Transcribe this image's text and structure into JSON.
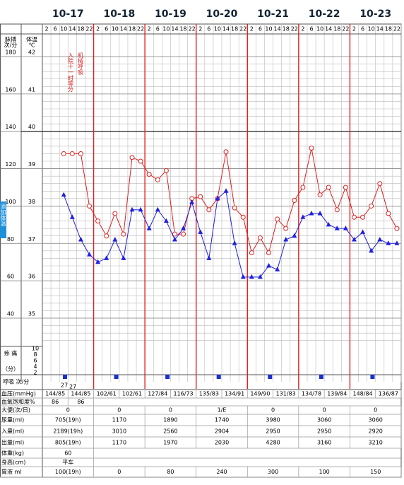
{
  "chart_data": {
    "type": "line",
    "days": [
      "10-17",
      "10-18",
      "10-19",
      "10-20",
      "10-21",
      "10-22",
      "10-23"
    ],
    "categories": [
      2,
      6,
      10,
      14,
      18,
      22,
      2,
      6,
      10,
      14,
      18,
      22,
      2,
      6,
      10,
      14,
      18,
      22,
      2,
      6,
      10,
      14,
      18,
      22,
      2,
      6,
      10,
      14,
      18,
      22,
      2,
      6,
      10,
      14,
      18,
      22,
      2,
      6,
      10,
      14,
      18,
      22
    ],
    "y_label": [
      "脉搏",
      "次/分"
    ],
    "y2_label": [
      "体温",
      "℃"
    ],
    "ylim": [
      40,
      180
    ],
    "yticks": [
      180,
      160,
      140,
      120,
      100,
      80,
      60,
      40
    ],
    "y2lim": [
      35,
      42
    ],
    "y2ticks": [
      42,
      41,
      40,
      39,
      38,
      37,
      36,
      35
    ],
    "series": [
      {
        "name": "脉搏",
        "color": "#e02020",
        "axis": "y",
        "values": [
          null,
          null,
          128,
          128,
          128,
          100,
          92,
          84,
          96,
          85,
          126,
          124,
          117,
          114,
          119,
          85,
          85,
          104,
          105,
          98,
          104,
          129,
          99,
          94,
          75,
          83,
          75,
          93,
          88,
          103,
          110,
          131,
          106,
          110,
          98,
          110,
          94,
          94,
          100,
          112,
          96,
          88
        ]
      },
      {
        "name": "体温",
        "color": "#2020e0",
        "axis": "y2",
        "values": [
          null,
          null,
          38.3,
          37.7,
          37.1,
          36.7,
          36.5,
          36.6,
          37.1,
          36.6,
          37.9,
          37.9,
          37.4,
          37.9,
          37.6,
          37.1,
          37.4,
          38.1,
          37.3,
          36.6,
          38.2,
          38.4,
          37.0,
          36.1,
          36.1,
          36.1,
          36.4,
          36.3,
          37.1,
          37.2,
          37.7,
          37.8,
          37.8,
          37.5,
          37.4,
          37.4,
          37.1,
          37.3,
          36.8,
          37.1,
          37.0,
          37.0
        ]
      }
    ],
    "annotations": [
      "入院十一时零分",
      "机械呼吸"
    ],
    "side_button": "添加体温",
    "pain_label": [
      "疼 痛",
      "（分）"
    ],
    "pain_ticks": [
      10,
      8,
      6,
      4,
      2
    ],
    "respiration_label": "呼吸 次/分",
    "respiration_values": [
      27,
      27
    ],
    "grid": true
  },
  "table": {
    "rows": [
      {
        "label": "血压(mmHg)",
        "cells": [
          "144/85",
          "144/85",
          "102/61",
          "102/61",
          "127/84",
          "116/73",
          "135/83",
          "134/91",
          "149/90",
          "131/83",
          "134/78",
          "139/84",
          "148/84",
          "136/87"
        ]
      },
      {
        "label": "血氧饱和度%",
        "cells": [
          "86",
          "86"
        ]
      },
      {
        "label": "大便(次/日)",
        "cells": [
          "0",
          "0",
          "0",
          "1/E",
          "0",
          "0",
          "0"
        ]
      },
      {
        "label": "尿量(ml)",
        "cells": [
          "705(19h)",
          "1170",
          "1890",
          "1740",
          "3980",
          "3060",
          "3060"
        ]
      },
      {
        "label": "入量(ml)",
        "cells": [
          "2189(19h)",
          "3010",
          "2560",
          "2904",
          "2950",
          "2950",
          "2920"
        ]
      },
      {
        "label": "出量(ml)",
        "cells": [
          "805(19h)",
          "1170",
          "1970",
          "2030",
          "4280",
          "3160",
          "3210"
        ]
      },
      {
        "label": "体重(kg)",
        "cells": [
          "60"
        ]
      },
      {
        "label": "身高(cm)",
        "cells": [
          "平车"
        ]
      },
      {
        "label": "胃液 ml",
        "cells": [
          "100(19h)",
          "0",
          "80",
          "240",
          "300",
          "100",
          "150"
        ]
      }
    ]
  }
}
